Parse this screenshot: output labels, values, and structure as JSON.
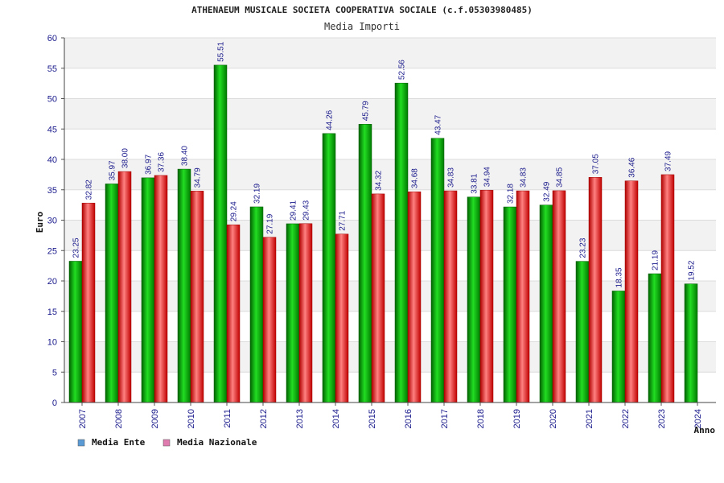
{
  "chart_data": {
    "type": "bar",
    "title": "ATHENAEUM MUSICALE SOCIETA COOPERATIVA SOCIALE (c.f.05303980485)",
    "subtitle": "Media Importi",
    "xlabel": "Anno",
    "ylabel": "Euro",
    "ylim": [
      0,
      60
    ],
    "yticks": [
      0,
      5,
      10,
      15,
      20,
      25,
      30,
      35,
      40,
      45,
      50,
      55,
      60
    ],
    "grid": true,
    "legend_position": "bottom-left",
    "categories": [
      "2007",
      "2008",
      "2009",
      "2010",
      "2011",
      "2012",
      "2013",
      "2014",
      "2015",
      "2016",
      "2017",
      "2018",
      "2019",
      "2020",
      "2021",
      "2022",
      "2023",
      "2024"
    ],
    "series": [
      {
        "name": "Media Ente",
        "legend_color": "#5b9bd5",
        "bar_color": "#00b000",
        "labels": [
          "23.25",
          "35.97",
          "36.97",
          "38.40",
          "55.51",
          "32.19",
          "29.41",
          "44.26",
          "45.79",
          "52.56",
          "43.47",
          "33.81",
          "32.18",
          "32.49",
          "23.23",
          "18.35",
          "21.19",
          "19.52"
        ],
        "values": [
          23.25,
          35.97,
          36.97,
          38.4,
          55.51,
          32.19,
          29.41,
          44.26,
          45.79,
          52.56,
          43.47,
          33.81,
          32.18,
          32.49,
          23.23,
          18.35,
          21.19,
          19.52
        ]
      },
      {
        "name": "Media Nazionale",
        "legend_color": "#e07bb0",
        "bar_color": "#e02020",
        "labels": [
          "32.82",
          "38.00",
          "37.36",
          "34.79",
          "29.24",
          "27.19",
          "29.43",
          "27.71",
          "34.32",
          "34.68",
          "34.83",
          "34.94",
          "34.83",
          "34.85",
          "37.05",
          "36.46",
          "37.49",
          null
        ],
        "values": [
          32.82,
          38.0,
          37.36,
          34.79,
          29.24,
          27.19,
          29.43,
          27.71,
          34.32,
          34.68,
          34.83,
          34.94,
          34.83,
          34.85,
          37.05,
          36.46,
          37.49,
          null
        ]
      }
    ]
  }
}
